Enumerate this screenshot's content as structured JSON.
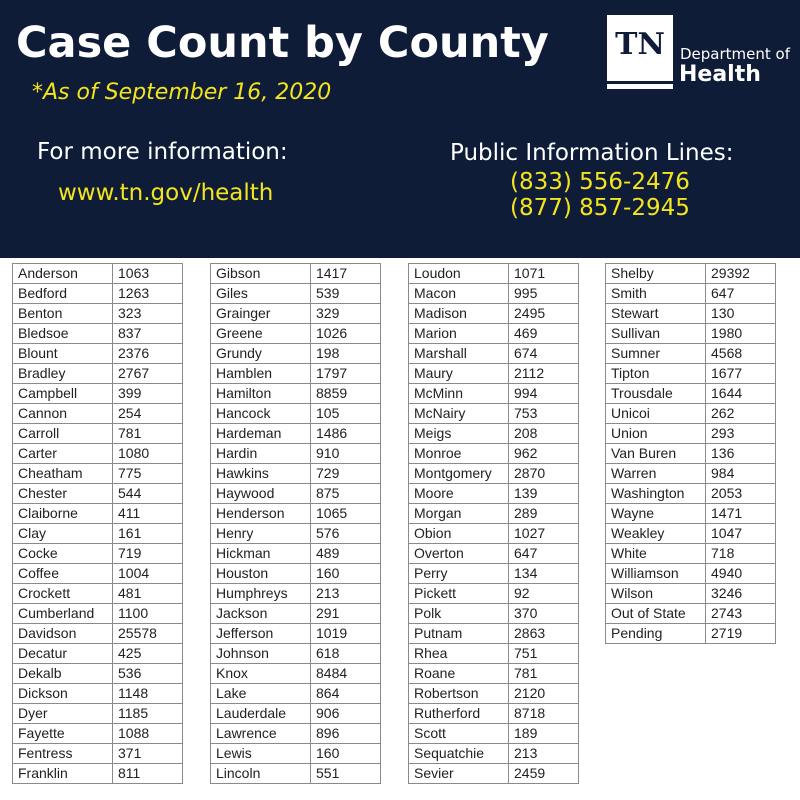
{
  "header": {
    "title": "Case Count by County",
    "as_of": "*As of September 16, 2020",
    "more_info_label": "For more information:",
    "more_info_url": "www.tn.gov/health",
    "public_lines_label": "Public Information Lines:",
    "phone1": "(833) 556-2476",
    "phone2": "(877) 857-2945"
  },
  "logo": {
    "mark": "TN",
    "line1": "Department of",
    "line2": "Health"
  },
  "colors": {
    "header_bg": "#0f1c38",
    "accent_yellow": "#f4e41c",
    "white": "#ffffff"
  },
  "columns": [
    [
      [
        "Anderson",
        "1063"
      ],
      [
        "Bedford",
        "1263"
      ],
      [
        "Benton",
        "323"
      ],
      [
        "Bledsoe",
        "837"
      ],
      [
        "Blount",
        "2376"
      ],
      [
        "Bradley",
        "2767"
      ],
      [
        "Campbell",
        "399"
      ],
      [
        "Cannon",
        "254"
      ],
      [
        "Carroll",
        "781"
      ],
      [
        "Carter",
        "1080"
      ],
      [
        "Cheatham",
        "775"
      ],
      [
        "Chester",
        "544"
      ],
      [
        "Claiborne",
        "411"
      ],
      [
        "Clay",
        "161"
      ],
      [
        "Cocke",
        "719"
      ],
      [
        "Coffee",
        "1004"
      ],
      [
        "Crockett",
        "481"
      ],
      [
        "Cumberland",
        "1100"
      ],
      [
        "Davidson",
        "25578"
      ],
      [
        "Decatur",
        "425"
      ],
      [
        "Dekalb",
        "536"
      ],
      [
        "Dickson",
        "1148"
      ],
      [
        "Dyer",
        "1185"
      ],
      [
        "Fayette",
        "1088"
      ],
      [
        "Fentress",
        "371"
      ],
      [
        "Franklin",
        "811"
      ]
    ],
    [
      [
        "Gibson",
        "1417"
      ],
      [
        "Giles",
        "539"
      ],
      [
        "Grainger",
        "329"
      ],
      [
        "Greene",
        "1026"
      ],
      [
        "Grundy",
        "198"
      ],
      [
        "Hamblen",
        "1797"
      ],
      [
        "Hamilton",
        "8859"
      ],
      [
        "Hancock",
        "105"
      ],
      [
        "Hardeman",
        "1486"
      ],
      [
        "Hardin",
        "910"
      ],
      [
        "Hawkins",
        "729"
      ],
      [
        "Haywood",
        "875"
      ],
      [
        "Henderson",
        "1065"
      ],
      [
        "Henry",
        "576"
      ],
      [
        "Hickman",
        "489"
      ],
      [
        "Houston",
        "160"
      ],
      [
        "Humphreys",
        "213"
      ],
      [
        "Jackson",
        "291"
      ],
      [
        "Jefferson",
        "1019"
      ],
      [
        "Johnson",
        "618"
      ],
      [
        "Knox",
        "8484"
      ],
      [
        "Lake",
        "864"
      ],
      [
        "Lauderdale",
        "906"
      ],
      [
        "Lawrence",
        "896"
      ],
      [
        "Lewis",
        "160"
      ],
      [
        "Lincoln",
        "551"
      ]
    ],
    [
      [
        "Loudon",
        "1071"
      ],
      [
        "Macon",
        "995"
      ],
      [
        "Madison",
        "2495"
      ],
      [
        "Marion",
        "469"
      ],
      [
        "Marshall",
        "674"
      ],
      [
        "Maury",
        "2112"
      ],
      [
        "McMinn",
        "994"
      ],
      [
        "McNairy",
        "753"
      ],
      [
        "Meigs",
        "208"
      ],
      [
        "Monroe",
        "962"
      ],
      [
        "Montgomery",
        "2870"
      ],
      [
        "Moore",
        "139"
      ],
      [
        "Morgan",
        "289"
      ],
      [
        "Obion",
        "1027"
      ],
      [
        "Overton",
        "647"
      ],
      [
        "Perry",
        "134"
      ],
      [
        "Pickett",
        "92"
      ],
      [
        "Polk",
        "370"
      ],
      [
        "Putnam",
        "2863"
      ],
      [
        "Rhea",
        "751"
      ],
      [
        "Roane",
        "781"
      ],
      [
        "Robertson",
        "2120"
      ],
      [
        "Rutherford",
        "8718"
      ],
      [
        "Scott",
        "189"
      ],
      [
        "Sequatchie",
        "213"
      ],
      [
        "Sevier",
        "2459"
      ]
    ],
    [
      [
        "Shelby",
        "29392"
      ],
      [
        "Smith",
        "647"
      ],
      [
        "Stewart",
        "130"
      ],
      [
        "Sullivan",
        "1980"
      ],
      [
        "Sumner",
        "4568"
      ],
      [
        "Tipton",
        "1677"
      ],
      [
        "Trousdale",
        "1644"
      ],
      [
        "Unicoi",
        "262"
      ],
      [
        "Union",
        "293"
      ],
      [
        "Van Buren",
        "136"
      ],
      [
        "Warren",
        "984"
      ],
      [
        "Washington",
        "2053"
      ],
      [
        "Wayne",
        "1471"
      ],
      [
        "Weakley",
        "1047"
      ],
      [
        "White",
        "718"
      ],
      [
        "Williamson",
        "4940"
      ],
      [
        "Wilson",
        "3246"
      ],
      [
        "Out of State",
        "2743"
      ],
      [
        "Pending",
        "2719"
      ]
    ]
  ]
}
